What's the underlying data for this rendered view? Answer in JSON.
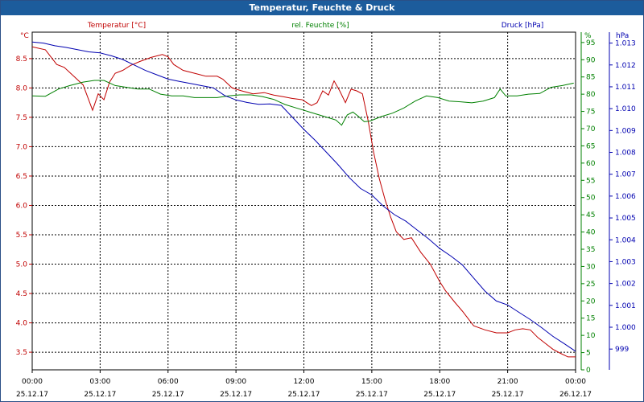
{
  "window": {
    "title": "Temperatur, Feuchte & Druck"
  },
  "colors": {
    "temperature": "#c00000",
    "humidity": "#008000",
    "pressure": "#0000b0",
    "title_bar": "#1c5c9c",
    "grid": "#000000"
  },
  "chart_data": {
    "type": "line",
    "title": "Temperatur, Feuchte & Druck",
    "grid": true,
    "x_labels": [
      {
        "time": "00:00",
        "date": "25.12.17"
      },
      {
        "time": "03:00",
        "date": "25.12.17"
      },
      {
        "time": "06:00",
        "date": "25.12.17"
      },
      {
        "time": "09:00",
        "date": "25.12.17"
      },
      {
        "time": "12:00",
        "date": "25.12.17"
      },
      {
        "time": "15:00",
        "date": "25.12.17"
      },
      {
        "time": "18:00",
        "date": "25.12.17"
      },
      {
        "time": "21:00",
        "date": "25.12.17"
      },
      {
        "time": "00:00",
        "date": "26.12.17"
      }
    ],
    "xlim": [
      "25.12.17 00:00",
      "26.12.17 00:00"
    ],
    "axes": {
      "temperature": {
        "unit": "°C",
        "label": "Temperatur [°C]",
        "ylim": [
          3.2,
          8.95
        ],
        "ticks": [
          "3.5",
          "4.0",
          "4.5",
          "5.0",
          "5.5",
          "6.0",
          "6.5",
          "7.0",
          "7.5",
          "8.0",
          "8.5"
        ]
      },
      "humidity": {
        "unit": "%",
        "label": "rel. Feuchte [%]",
        "ylim": [
          0,
          98
        ],
        "ticks": [
          "0",
          "5",
          "10",
          "15",
          "20",
          "25",
          "30",
          "35",
          "40",
          "45",
          "50",
          "55",
          "60",
          "65",
          "70",
          "75",
          "80",
          "85",
          "90",
          "95"
        ]
      },
      "pressure": {
        "unit": "hPa",
        "label": "Druck [hPa]",
        "ylim": [
          998.05,
          1013.5
        ],
        "ticks": [
          "999",
          "1.000",
          "1.001",
          "1.002",
          "1.003",
          "1.004",
          "1.005",
          "1.006",
          "1.007",
          "1.008",
          "1.009",
          "1.010",
          "1.011",
          "1.012",
          "1.013"
        ]
      }
    },
    "series": [
      {
        "name": "Temperatur [°C]",
        "axis": "temperature",
        "x": [
          "25.12.17 00:00",
          "25.12.17 00:35",
          "25.12.17 01:05",
          "25.12.17 01:25",
          "25.12.17 01:50",
          "25.12.17 02:15",
          "25.12.17 02:40",
          "25.12.17 02:55",
          "25.12.17 03:10",
          "25.12.17 03:25",
          "25.12.17 03:40",
          "25.12.17 04:00",
          "25.12.17 04:20",
          "25.12.17 04:45",
          "25.12.17 05:15",
          "25.12.17 05:45",
          "25.12.17 06:00",
          "25.12.17 06:15",
          "25.12.17 06:40",
          "25.12.17 07:10",
          "25.12.17 07:40",
          "25.12.17 08:10",
          "25.12.17 08:25",
          "25.12.17 08:50",
          "25.12.17 09:15",
          "25.12.17 09:45",
          "25.12.17 10:15",
          "25.12.17 10:40",
          "25.12.17 11:05",
          "25.12.17 11:30",
          "25.12.17 11:55",
          "25.12.17 12:20",
          "25.12.17 12:35",
          "25.12.17 12:50",
          "25.12.17 13:05",
          "25.12.17 13:20",
          "25.12.17 13:35",
          "25.12.17 13:50",
          "25.12.17 14:05",
          "25.12.17 14:20",
          "25.12.17 14:35",
          "25.12.17 14:50",
          "25.12.17 15:05",
          "25.12.17 15:20",
          "25.12.17 15:35",
          "25.12.17 15:50",
          "25.12.17 16:05",
          "25.12.17 16:25",
          "25.12.17 16:45",
          "25.12.17 17:10",
          "25.12.17 17:35",
          "25.12.17 18:00",
          "25.12.17 18:15",
          "25.12.17 18:40",
          "25.12.17 19:00",
          "25.12.17 19:30",
          "25.12.17 20:00",
          "25.12.17 20:30",
          "25.12.17 21:00",
          "25.12.17 21:20",
          "25.12.17 21:40",
          "25.12.17 22:00",
          "25.12.17 22:20",
          "25.12.17 22:40",
          "25.12.17 23:00",
          "25.12.17 23:20",
          "25.12.17 23:40",
          "26.12.17 00:00"
        ],
        "values": [
          8.7,
          8.65,
          8.4,
          8.35,
          8.2,
          8.05,
          7.62,
          7.9,
          7.8,
          8.1,
          8.25,
          8.3,
          8.38,
          8.45,
          8.52,
          8.57,
          8.53,
          8.4,
          8.3,
          8.25,
          8.2,
          8.2,
          8.15,
          8.0,
          7.95,
          7.9,
          7.92,
          7.88,
          7.85,
          7.82,
          7.8,
          7.7,
          7.75,
          7.95,
          7.88,
          8.12,
          7.95,
          7.75,
          7.98,
          7.95,
          7.9,
          7.45,
          6.9,
          6.45,
          6.1,
          5.8,
          5.55,
          5.42,
          5.45,
          5.2,
          5.0,
          4.7,
          4.55,
          4.35,
          4.2,
          3.95,
          3.88,
          3.83,
          3.83,
          3.88,
          3.9,
          3.88,
          3.75,
          3.65,
          3.55,
          3.48,
          3.42,
          3.42
        ]
      },
      {
        "name": "rel. Feuchte [%]",
        "axis": "humidity",
        "x": [
          "25.12.17 00:00",
          "25.12.17 00:35",
          "25.12.17 01:10",
          "25.12.17 01:40",
          "25.12.17 02:15",
          "25.12.17 02:45",
          "25.12.17 03:10",
          "25.12.17 03:40",
          "25.12.17 04:10",
          "25.12.17 04:40",
          "25.12.17 05:10",
          "25.12.17 05:40",
          "25.12.17 06:10",
          "25.12.17 06:40",
          "25.12.17 07:10",
          "25.12.17 07:40",
          "25.12.17 08:10",
          "25.12.17 08:40",
          "25.12.17 09:10",
          "25.12.17 09:40",
          "25.12.17 10:10",
          "25.12.17 10:40",
          "25.12.17 11:10",
          "25.12.17 11:40",
          "25.12.17 12:10",
          "25.12.17 12:40",
          "25.12.17 13:10",
          "25.12.17 13:25",
          "25.12.17 13:40",
          "25.12.17 13:55",
          "25.12.17 14:10",
          "25.12.17 14:25",
          "25.12.17 14:40",
          "25.12.17 14:55",
          "25.12.17 15:25",
          "25.12.17 15:55",
          "25.12.17 16:25",
          "25.12.17 16:55",
          "25.12.17 17:25",
          "25.12.17 17:55",
          "25.12.17 18:25",
          "25.12.17 18:55",
          "25.12.17 19:25",
          "25.12.17 19:55",
          "25.12.17 20:25",
          "25.12.17 20:40",
          "25.12.17 20:55",
          "25.12.17 21:25",
          "25.12.17 21:55",
          "25.12.17 22:25",
          "25.12.17 22:55",
          "25.12.17 23:25",
          "25.12.17 23:55"
        ],
        "values": [
          79.5,
          79.4,
          81.5,
          82.5,
          83.5,
          84,
          84,
          82.5,
          82,
          81.5,
          81.5,
          80,
          79.5,
          79.5,
          79,
          79,
          79,
          79.5,
          79.8,
          79.8,
          79.3,
          78.5,
          77,
          76,
          75,
          74,
          73,
          72.5,
          71,
          74,
          74.8,
          73.5,
          72,
          72.2,
          73.5,
          74.5,
          76,
          78,
          79.5,
          79,
          78,
          77.8,
          77.5,
          78,
          79,
          81.5,
          79.5,
          79.5,
          80,
          80.2,
          82,
          82.5,
          83.2
        ]
      },
      {
        "name": "Druck [hPa]",
        "axis": "pressure",
        "x": [
          "25.12.17 00:00",
          "25.12.17 00:30",
          "25.12.17 01:00",
          "25.12.17 01:30",
          "25.12.17 02:00",
          "25.12.17 02:30",
          "25.12.17 03:00",
          "25.12.17 03:30",
          "25.12.17 04:00",
          "25.12.17 04:30",
          "25.12.17 05:00",
          "25.12.17 05:30",
          "25.12.17 06:00",
          "25.12.17 06:30",
          "25.12.17 07:00",
          "25.12.17 07:30",
          "25.12.17 08:00",
          "25.12.17 08:30",
          "25.12.17 09:00",
          "25.12.17 09:30",
          "25.12.17 10:00",
          "25.12.17 10:30",
          "25.12.17 11:00",
          "25.12.17 11:30",
          "25.12.17 12:00",
          "25.12.17 12:30",
          "25.12.17 13:00",
          "25.12.17 13:30",
          "25.12.17 14:00",
          "25.12.17 14:30",
          "25.12.17 15:00",
          "25.12.17 15:30",
          "25.12.17 16:00",
          "25.12.17 16:30",
          "25.12.17 17:00",
          "25.12.17 17:30",
          "25.12.17 18:00",
          "25.12.17 18:30",
          "25.12.17 19:00",
          "25.12.17 19:30",
          "25.12.17 20:00",
          "25.12.17 20:30",
          "25.12.17 21:00",
          "25.12.17 21:30",
          "25.12.17 22:00",
          "25.12.17 22:30",
          "25.12.17 23:00",
          "25.12.17 23:30",
          "26.12.17 00:00"
        ],
        "values": [
          1013.05,
          1013.0,
          1012.88,
          1012.8,
          1012.7,
          1012.6,
          1012.55,
          1012.42,
          1012.25,
          1012.0,
          1011.75,
          1011.55,
          1011.35,
          1011.25,
          1011.15,
          1011.05,
          1010.95,
          1010.6,
          1010.4,
          1010.28,
          1010.2,
          1010.22,
          1010.15,
          1009.6,
          1009.05,
          1008.55,
          1008.0,
          1007.45,
          1006.85,
          1006.35,
          1006.05,
          1005.55,
          1005.15,
          1004.85,
          1004.45,
          1004.05,
          1003.6,
          1003.25,
          1002.85,
          1002.25,
          1001.65,
          1001.2,
          1001.02,
          1000.68,
          1000.35,
          999.98,
          999.58,
          999.25,
          998.9
        ]
      }
    ]
  }
}
